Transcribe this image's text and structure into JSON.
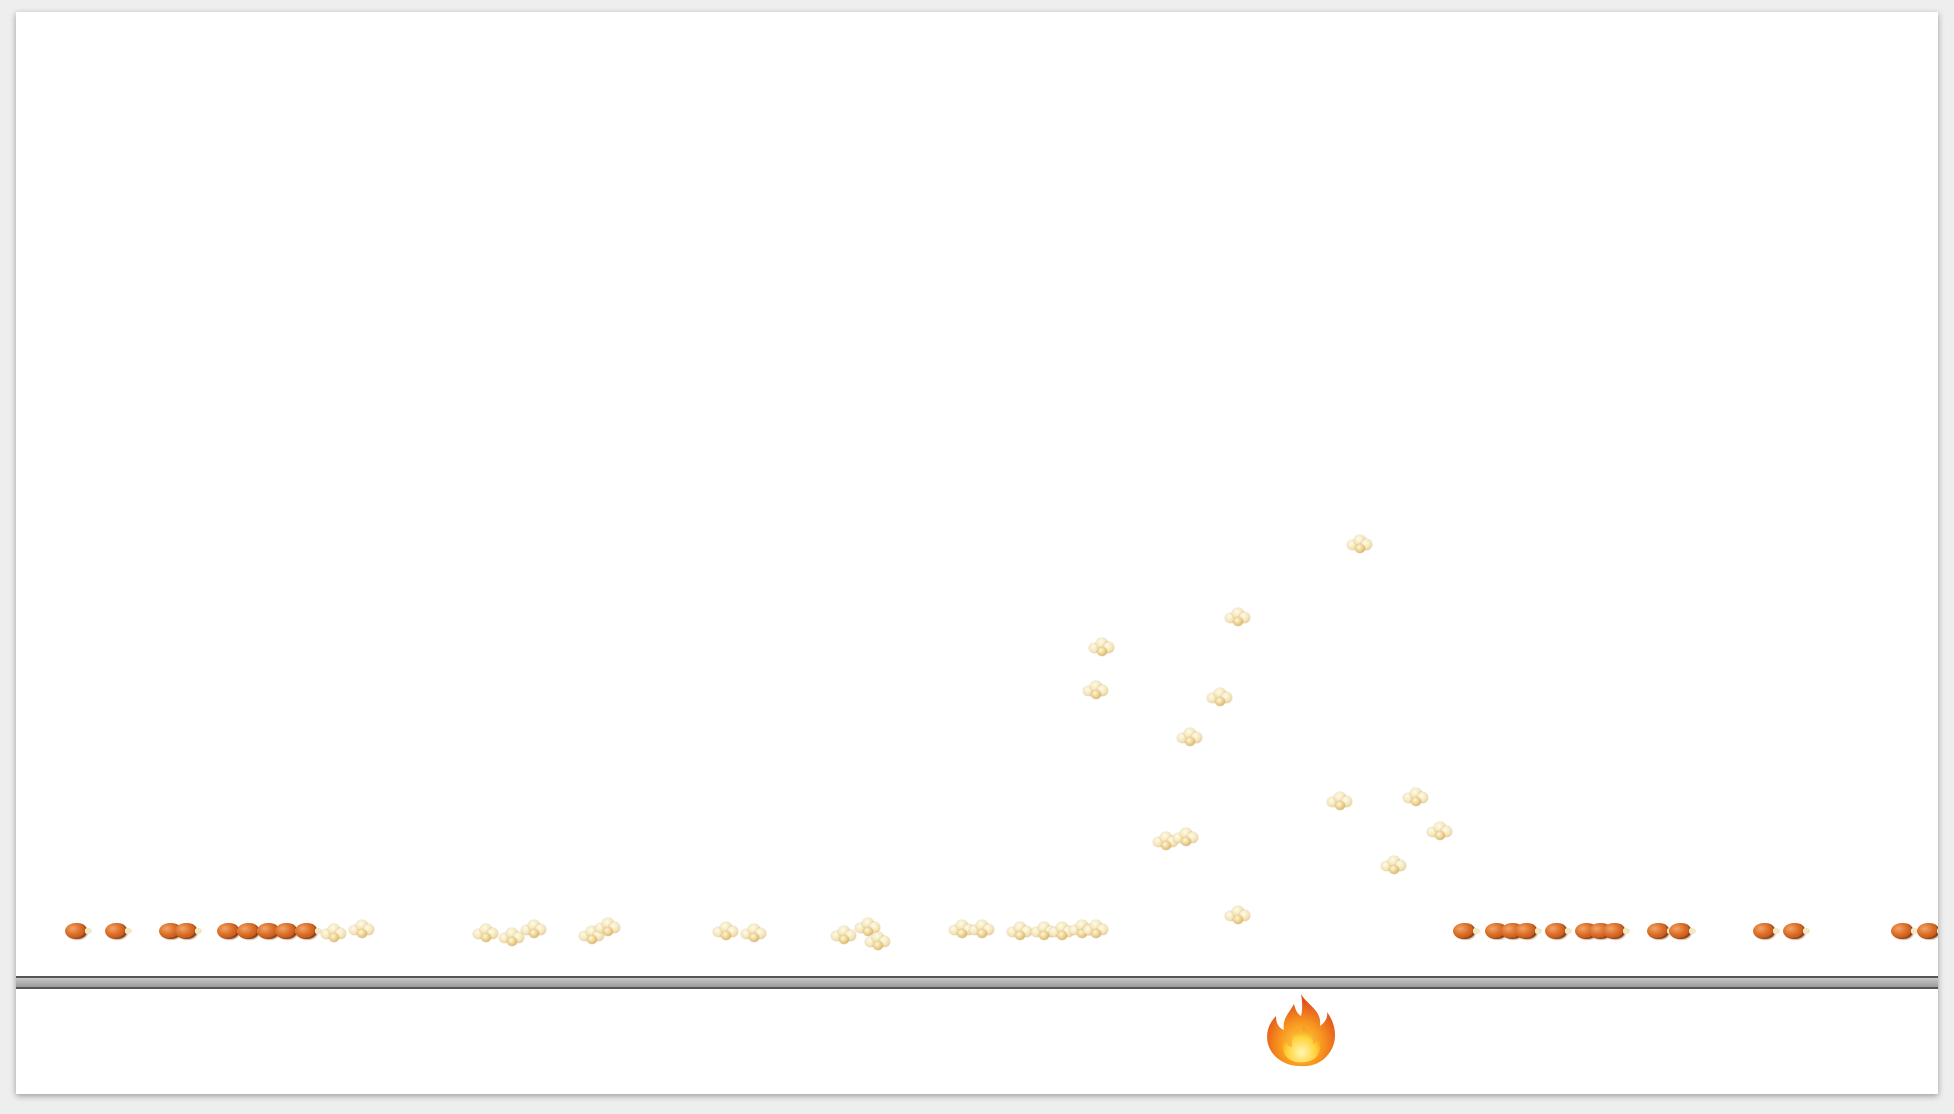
{
  "game": {
    "type": "popcorn-kernel-popping-simulation",
    "kernel_sprite": "unpopped-kernel",
    "popcorn_sprite": "popped-popcorn",
    "heat_source_icon": "fire-icon",
    "colors": {
      "background": "#ffffff",
      "pan": "#a8a8a8",
      "pan_border": "#555555",
      "kernel": "#d86a24",
      "popcorn": "#f4e4b4",
      "flame": "#f7931e"
    },
    "counts": {
      "unpopped_on_pan": 30,
      "popped_resting_on_pan": 26,
      "popped_in_air": 15
    }
  }
}
